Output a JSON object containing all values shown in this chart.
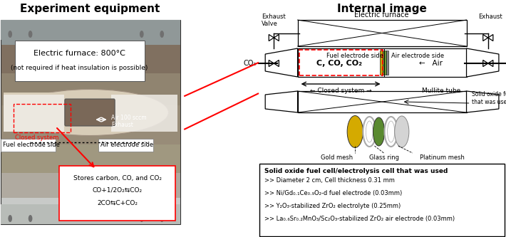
{
  "title_left": "Experiment equipment",
  "title_right": "Internal image",
  "title_fontsize": 11,
  "title_fontweight": "bold",
  "bg_color": "#ffffff",
  "diagram_labels": {
    "exhaust_left": "Exhaust",
    "valve_left": "Valve",
    "co2_label": "CO₂",
    "electric_furnace": "Electric furnace",
    "exhaust_right": "Exhaust",
    "fuel_side": "Fuel electrode side",
    "air_side": "Air electrode side",
    "c_co_co2": "C, CO, CO₂",
    "air": "←   Air",
    "closed_system_arrow": "← Closed system →",
    "mullite_tube": "Mullite tube",
    "sofc_label": "Solid oxide fuel cell/electrolysis cell\nthat was used",
    "gold_mesh": "Gold mesh",
    "glass_ring": "Glass ring",
    "platinum_mesh": "Platinum mesh"
  },
  "info_box": {
    "title": "Solid oxide fuel cell/electrolysis cell that was used",
    "lines": [
      ">> Diameter 2 cm, Cell thickness 0.31 mm",
      ">> Ni/Gd₀.₁Ce₀.₉O₂-d fuel electrode (0.03mm)",
      ">> Y₂O₃-stabilized ZrO₂ electrolyte (0.25mm)",
      ">> La₀.₆Sr₀.₂MnO₃/Sc₂O₃-stabilized ZrO₂ air electrode (0.03mm)"
    ]
  },
  "photo": {
    "bg_top": "#c8cac8",
    "bg_mid": "#b8b0a0",
    "bg_bot": "#888070",
    "frame_color": "#909090",
    "tube_color": "#d8cdb8",
    "tube_inner_color": "#a09080",
    "insulation_color": "#f0ede8"
  }
}
